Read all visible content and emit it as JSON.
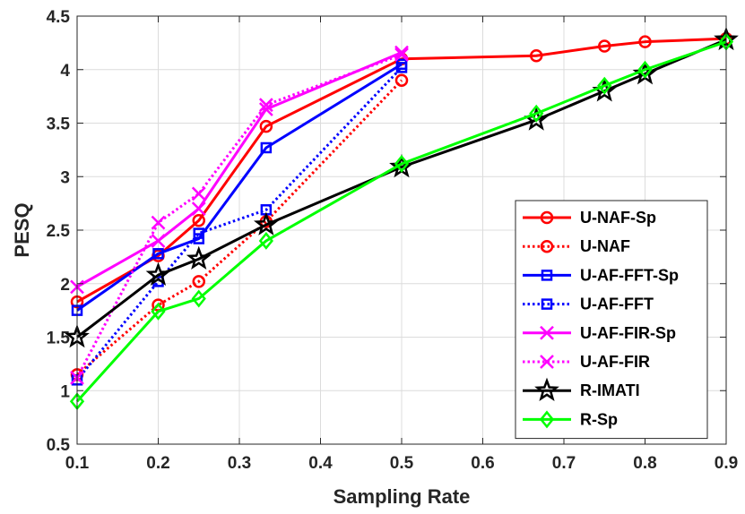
{
  "chart_data": {
    "type": "line",
    "xlabel": "Sampling Rate",
    "ylabel": "PESQ",
    "xlim": [
      0.1,
      0.9
    ],
    "ylim": [
      0.5,
      4.5
    ],
    "xticks": [
      "0.1",
      "0.2",
      "0.3",
      "0.4",
      "0.5",
      "0.6",
      "0.7",
      "0.8",
      "0.9"
    ],
    "yticks": [
      "0.5",
      "1",
      "1.5",
      "2",
      "2.5",
      "3",
      "3.5",
      "4",
      "4.5"
    ],
    "grid": true,
    "legend_position": "center-right",
    "series": [
      {
        "name": "U-NAF-Sp",
        "color": "#ff0000",
        "style": "solid",
        "marker": "circle",
        "x": [
          0.1,
          0.2,
          0.25,
          0.333,
          0.5,
          0.666,
          0.75,
          0.8,
          0.9
        ],
        "y": [
          1.83,
          2.26,
          2.59,
          3.47,
          4.1,
          4.13,
          4.22,
          4.26,
          4.29
        ]
      },
      {
        "name": "U-NAF",
        "color": "#ff0000",
        "style": "dotted",
        "marker": "circle",
        "x": [
          0.1,
          0.2,
          0.25,
          0.333,
          0.5
        ],
        "y": [
          1.15,
          1.8,
          2.02,
          2.58,
          3.9
        ]
      },
      {
        "name": "U-AF-FFT-Sp",
        "color": "#0000ff",
        "style": "solid",
        "marker": "square",
        "x": [
          0.1,
          0.2,
          0.25,
          0.333,
          0.5
        ],
        "y": [
          1.75,
          2.28,
          2.42,
          3.27,
          4.05
        ]
      },
      {
        "name": "U-AF-FFT",
        "color": "#0000ff",
        "style": "dotted",
        "marker": "square",
        "x": [
          0.1,
          0.2,
          0.25,
          0.333,
          0.5
        ],
        "y": [
          1.1,
          2.02,
          2.47,
          2.69,
          4.02
        ]
      },
      {
        "name": "U-AF-FIR-Sp",
        "color": "#ff00ff",
        "style": "solid",
        "marker": "x",
        "x": [
          0.1,
          0.2,
          0.25,
          0.333,
          0.5
        ],
        "y": [
          1.97,
          2.4,
          2.7,
          3.63,
          4.16
        ]
      },
      {
        "name": "U-AF-FIR",
        "color": "#ff00ff",
        "style": "dotted",
        "marker": "x",
        "x": [
          0.1,
          0.2,
          0.25,
          0.333,
          0.5
        ],
        "y": [
          1.12,
          2.57,
          2.84,
          3.67,
          4.14
        ]
      },
      {
        "name": "R-IMATI",
        "color": "#000000",
        "style": "solid",
        "marker": "star",
        "x": [
          0.1,
          0.2,
          0.25,
          0.333,
          0.5,
          0.666,
          0.75,
          0.8,
          0.9
        ],
        "y": [
          1.5,
          2.08,
          2.23,
          2.55,
          3.09,
          3.53,
          3.8,
          3.96,
          4.28
        ]
      },
      {
        "name": "R-Sp",
        "color": "#00ff00",
        "style": "solid",
        "marker": "diamond",
        "x": [
          0.1,
          0.2,
          0.25,
          0.333,
          0.5,
          0.666,
          0.75,
          0.8,
          0.9
        ],
        "y": [
          0.9,
          1.74,
          1.86,
          2.4,
          3.12,
          3.59,
          3.85,
          4.0,
          4.26
        ]
      }
    ]
  }
}
